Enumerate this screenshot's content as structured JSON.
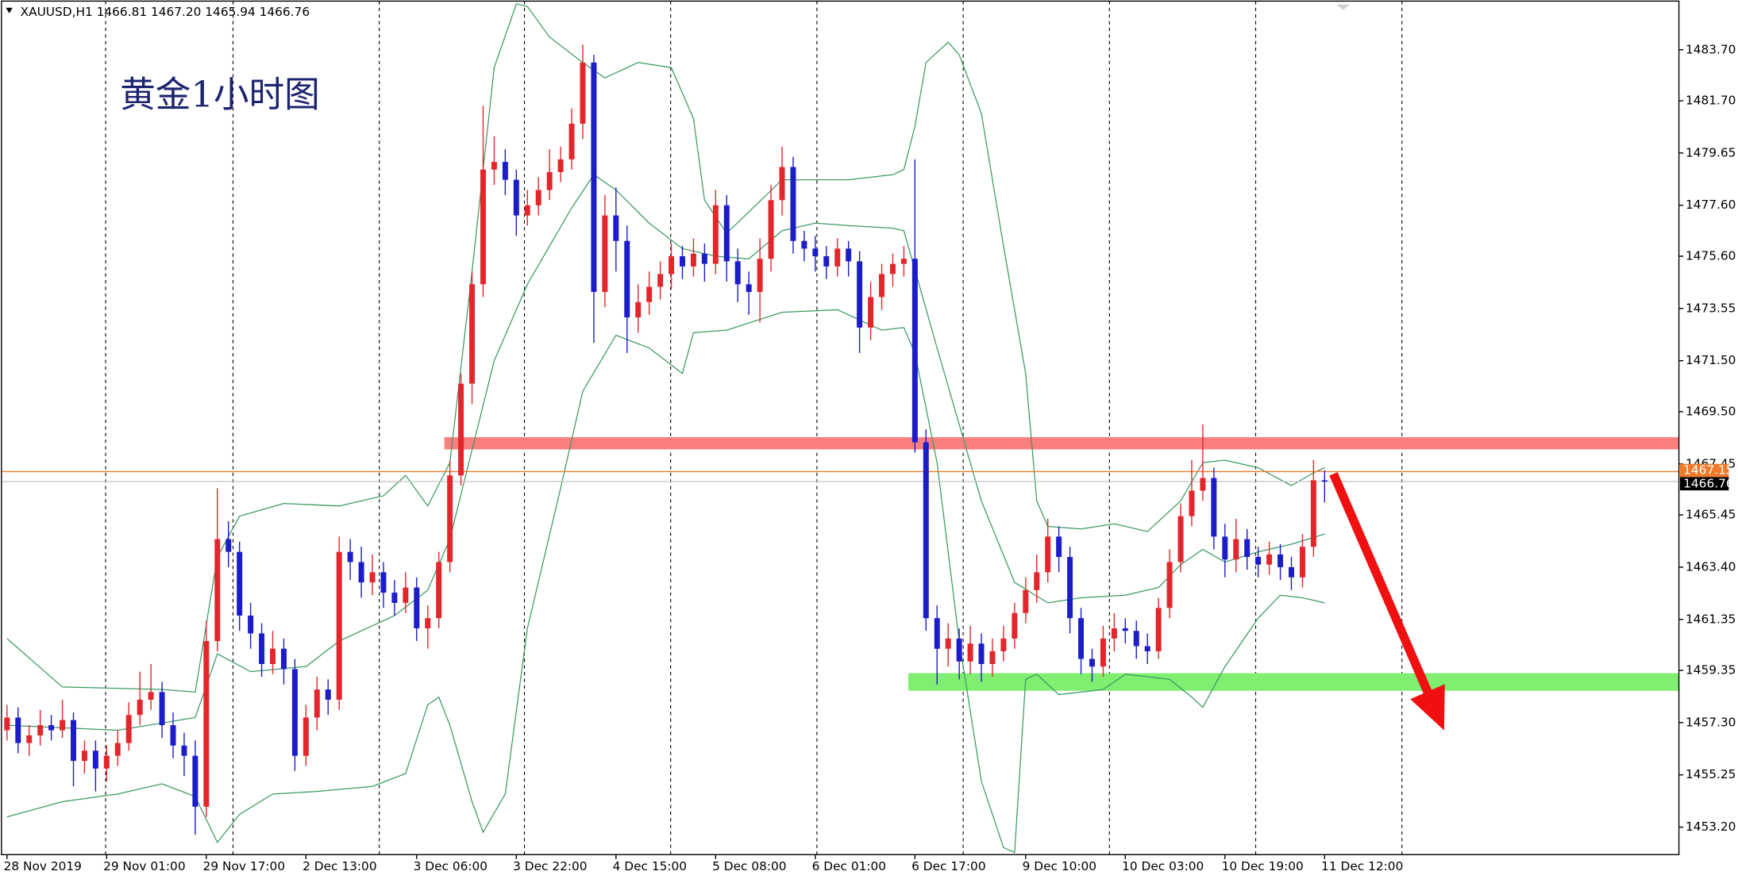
{
  "chart_data": {
    "type": "candlestick",
    "header": "XAUUSD,H1  1466.81 1467.20 1465.94 1466.76",
    "title": "黄金1小时图",
    "up_color": "#e3262b",
    "down_color": "#1c1cc8",
    "categories": [
      "28 Nov 2019",
      null,
      null,
      null,
      null,
      null,
      null,
      null,
      null,
      "29 Nov 01:00",
      null,
      null,
      null,
      null,
      null,
      null,
      null,
      null,
      "29 Nov 17:00",
      null,
      null,
      null,
      null,
      null,
      null,
      null,
      null,
      "2 Dec 13:00",
      null,
      null,
      null,
      null,
      null,
      null,
      null,
      null,
      null,
      "3 Dec 06:00",
      null,
      null,
      null,
      null,
      null,
      null,
      null,
      null,
      "3 Dec 22:00",
      null,
      null,
      null,
      null,
      null,
      null,
      null,
      null,
      "4 Dec 15:00",
      null,
      null,
      null,
      null,
      null,
      null,
      null,
      null,
      "5 Dec 08:00",
      null,
      null,
      null,
      null,
      null,
      null,
      null,
      null,
      "6 Dec 01:00",
      null,
      null,
      null,
      null,
      null,
      null,
      null,
      null,
      "6 Dec 17:00",
      null,
      null,
      null,
      null,
      null,
      null,
      null,
      null,
      null,
      "9 Dec 10:00",
      null,
      null,
      null,
      null,
      null,
      null,
      null,
      null,
      "10 Dec 03:00",
      null,
      null,
      null,
      null,
      null,
      null,
      null,
      null,
      "10 Dec 19:00",
      null,
      null,
      null,
      null,
      null,
      null,
      null,
      null,
      "11 Dec 12:00"
    ],
    "open": [
      1457.0,
      1457.5,
      1456.5,
      1456.8,
      1457.2,
      1457.0,
      1457.4,
      1455.8,
      1456.2,
      1455.5,
      1456.0,
      1456.5,
      1457.6,
      1458.2,
      1458.5,
      1457.2,
      1456.4,
      1456.0,
      1454.0,
      1460.5,
      1464.5,
      1464.0,
      1461.5,
      1460.8,
      1459.6,
      1460.2,
      1459.4,
      1456.0,
      1457.5,
      1458.6,
      1458.2,
      1464.0,
      1463.6,
      1462.8,
      1463.2,
      1462.4,
      1462.0,
      1462.6,
      1461.0,
      1461.4,
      1463.6,
      1467.0,
      1470.6,
      1474.5,
      1479.0,
      1479.3,
      1478.6,
      1477.2,
      1477.6,
      1478.2,
      1478.9,
      1479.4,
      1480.8,
      1483.2,
      1474.2,
      1477.2,
      1476.2,
      1473.2,
      1473.8,
      1474.4,
      1474.9,
      1475.6,
      1475.2,
      1475.7,
      1475.3,
      1477.6,
      1475.4,
      1474.5,
      1474.2,
      1475.5,
      1477.8,
      1479.1,
      1476.2,
      1475.9,
      1475.6,
      1475.2,
      1475.9,
      1475.4,
      1472.8,
      1474.0,
      1474.9,
      1475.3,
      1475.5,
      1468.3,
      1461.4,
      1460.2,
      1460.6,
      1459.7,
      1460.4,
      1459.6,
      1460.1,
      1460.6,
      1461.6,
      1462.5,
      1463.2,
      1464.6,
      1463.8,
      1461.4,
      1459.8,
      1459.5,
      1460.6,
      1461.0,
      1460.9,
      1460.3,
      1460.1,
      1461.8,
      1463.6,
      1465.4,
      1466.4,
      1466.9,
      1464.6,
      1463.7,
      1464.5,
      1463.8,
      1463.5,
      1463.9,
      1463.4,
      1463.0,
      1464.2,
      1466.81
    ],
    "high": [
      1458.0,
      1457.9,
      1457.2,
      1457.8,
      1457.6,
      1458.2,
      1457.7,
      1456.6,
      1456.6,
      1456.4,
      1457.0,
      1458.1,
      1459.3,
      1459.6,
      1458.9,
      1457.7,
      1456.9,
      1456.6,
      1461.3,
      1466.5,
      1465.2,
      1464.4,
      1462.0,
      1461.2,
      1460.9,
      1460.6,
      1459.8,
      1458.0,
      1459.1,
      1459.0,
      1464.6,
      1464.5,
      1464.2,
      1463.9,
      1463.6,
      1462.9,
      1463.2,
      1463.0,
      1461.9,
      1464.0,
      1467.6,
      1471.0,
      1475.0,
      1481.5,
      1480.3,
      1479.8,
      1479.0,
      1478.2,
      1478.7,
      1479.8,
      1479.9,
      1481.4,
      1483.9,
      1483.5,
      1478.0,
      1478.3,
      1476.8,
      1474.5,
      1475.0,
      1475.4,
      1476.1,
      1476.0,
      1476.3,
      1476.1,
      1478.2,
      1478.0,
      1475.9,
      1475.0,
      1476.3,
      1478.4,
      1479.9,
      1479.5,
      1476.6,
      1476.4,
      1476.0,
      1476.3,
      1476.2,
      1475.8,
      1474.6,
      1475.3,
      1475.7,
      1476.0,
      1479.4,
      1468.8,
      1461.9,
      1461.2,
      1461.0,
      1461.1,
      1460.8,
      1460.6,
      1461.1,
      1462.0,
      1463.0,
      1463.9,
      1465.3,
      1465.0,
      1464.2,
      1461.8,
      1460.2,
      1461.1,
      1461.6,
      1461.4,
      1461.3,
      1460.8,
      1462.2,
      1464.1,
      1465.9,
      1467.6,
      1469.0,
      1467.3,
      1465.1,
      1465.3,
      1464.9,
      1464.2,
      1464.4,
      1464.3,
      1463.8,
      1464.7,
      1467.6,
      1467.2
    ],
    "low": [
      1456.6,
      1456.1,
      1456.0,
      1456.4,
      1456.6,
      1456.7,
      1454.8,
      1455.3,
      1454.6,
      1455.0,
      1455.6,
      1456.2,
      1457.2,
      1457.8,
      1456.7,
      1455.9,
      1455.2,
      1452.9,
      1453.6,
      1460.1,
      1463.4,
      1460.9,
      1460.2,
      1459.1,
      1459.2,
      1458.8,
      1455.4,
      1455.6,
      1457.0,
      1457.6,
      1457.8,
      1462.9,
      1462.2,
      1462.3,
      1461.8,
      1461.5,
      1461.6,
      1460.5,
      1460.2,
      1461.0,
      1463.2,
      1466.6,
      1469.8,
      1474.0,
      1478.4,
      1478.0,
      1476.4,
      1476.8,
      1477.2,
      1477.8,
      1478.5,
      1479.0,
      1480.2,
      1472.2,
      1473.6,
      1475.0,
      1471.8,
      1472.6,
      1473.3,
      1473.9,
      1474.3,
      1474.7,
      1474.8,
      1474.6,
      1474.9,
      1474.6,
      1473.8,
      1473.3,
      1473.0,
      1475.0,
      1477.2,
      1475.7,
      1475.4,
      1475.0,
      1474.7,
      1474.8,
      1474.8,
      1471.8,
      1472.3,
      1473.5,
      1474.4,
      1474.8,
      1467.9,
      1460.9,
      1458.8,
      1459.5,
      1459.0,
      1459.2,
      1458.9,
      1459.1,
      1459.7,
      1460.2,
      1461.2,
      1462.0,
      1462.8,
      1463.2,
      1460.8,
      1459.2,
      1458.9,
      1459.1,
      1460.1,
      1460.4,
      1459.8,
      1459.6,
      1459.8,
      1461.4,
      1463.2,
      1465.0,
      1466.0,
      1464.1,
      1463.0,
      1463.2,
      1463.3,
      1463.0,
      1463.1,
      1462.9,
      1462.5,
      1462.6,
      1463.8,
      1465.94
    ],
    "close": [
      1457.5,
      1456.5,
      1456.8,
      1457.2,
      1457.0,
      1457.4,
      1455.8,
      1456.2,
      1455.5,
      1456.0,
      1456.5,
      1457.6,
      1458.2,
      1458.5,
      1457.2,
      1456.4,
      1456.0,
      1454.0,
      1460.5,
      1464.5,
      1464.0,
      1461.5,
      1460.8,
      1459.6,
      1460.2,
      1459.4,
      1456.0,
      1457.5,
      1458.6,
      1458.2,
      1464.0,
      1463.6,
      1462.8,
      1463.2,
      1462.4,
      1462.0,
      1462.6,
      1461.0,
      1461.4,
      1463.6,
      1467.0,
      1470.6,
      1474.5,
      1479.0,
      1479.3,
      1478.6,
      1477.2,
      1477.6,
      1478.2,
      1478.9,
      1479.4,
      1480.8,
      1483.2,
      1474.2,
      1477.2,
      1476.2,
      1473.2,
      1473.8,
      1474.4,
      1474.9,
      1475.6,
      1475.2,
      1475.7,
      1475.3,
      1477.6,
      1475.4,
      1474.5,
      1474.2,
      1475.5,
      1477.8,
      1479.1,
      1476.2,
      1475.9,
      1475.6,
      1475.2,
      1475.9,
      1475.4,
      1472.8,
      1474.0,
      1474.9,
      1475.3,
      1475.5,
      1468.3,
      1461.4,
      1460.2,
      1460.6,
      1459.7,
      1460.4,
      1459.6,
      1460.1,
      1460.6,
      1461.6,
      1462.5,
      1463.2,
      1464.6,
      1463.8,
      1461.4,
      1459.8,
      1459.5,
      1460.6,
      1461.0,
      1460.9,
      1460.3,
      1460.1,
      1461.8,
      1463.6,
      1465.4,
      1466.4,
      1466.9,
      1464.6,
      1463.7,
      1464.5,
      1463.8,
      1463.5,
      1463.9,
      1463.4,
      1463.0,
      1464.2,
      1466.81,
      1466.76
    ],
    "xlim": [
      -0.5,
      151
    ],
    "ylim": [
      1452.12,
      1485.61
    ],
    "yticks": [
      {
        "value": 1483.7,
        "label": "1483.70"
      },
      {
        "value": 1481.7,
        "label": "1481.70"
      },
      1479.65,
      {
        "value": 1477.6,
        "label": "1477.60"
      },
      {
        "value": 1475.6,
        "label": "1475.60"
      },
      1473.55,
      {
        "value": 1471.5,
        "label": "1471.50"
      },
      {
        "value": 1469.5,
        "label": "1469.50"
      },
      1467.45,
      1465.45,
      {
        "value": 1463.4,
        "label": "1463.40"
      },
      1461.35,
      1459.35,
      {
        "value": 1457.3,
        "label": "1457.30"
      },
      1455.25,
      {
        "value": 1453.2,
        "label": "1453.20"
      }
    ],
    "bands": [
      {
        "color": "#3c9a63",
        "x": [
          0,
          5,
          14,
          17,
          19,
          21,
          25,
          30,
          34,
          36,
          38,
          40,
          42,
          44,
          46,
          47,
          49,
          52,
          54,
          57,
          60,
          62,
          63,
          65,
          70,
          76,
          80,
          81,
          82,
          83,
          85,
          86,
          88,
          90,
          92,
          93,
          94,
          97,
          100,
          103,
          106,
          108,
          110,
          113,
          116,
          118,
          119
        ],
        "values": [
          1460.6,
          1458.7,
          1458.6,
          1458.5,
          1463.8,
          1465.4,
          1465.9,
          1465.8,
          1466.2,
          1467.0,
          1465.8,
          1467.5,
          1475,
          1483,
          1485.5,
          1485.4,
          1484.2,
          1483.2,
          1482.6,
          1483.2,
          1483.0,
          1481.0,
          1477.8,
          1476.5,
          1478.6,
          1478.6,
          1478.8,
          1479.0,
          1480.7,
          1483.2,
          1484.0,
          1483.5,
          1481.2,
          1476,
          1471,
          1466,
          1465.0,
          1464.9,
          1465.1,
          1464.8,
          1466.0,
          1467.5,
          1467.6,
          1467.3,
          1466.6,
          1467.1,
          1467.3
        ]
      },
      {
        "color": "#3c9a63",
        "x": [
          0,
          10,
          17,
          19,
          22,
          27,
          30,
          35,
          38,
          40,
          42,
          44,
          47,
          51,
          53,
          55,
          58,
          61,
          64,
          67,
          70,
          73,
          76,
          80,
          81,
          84,
          88,
          91,
          94,
          97,
          101,
          104,
          106,
          108,
          110,
          113,
          116,
          119
        ],
        "values": [
          1457.2,
          1457.0,
          1457.5,
          1460.0,
          1459.3,
          1459.5,
          1460.5,
          1461.5,
          1462.5,
          1464.5,
          1468,
          1471.5,
          1474.5,
          1477.5,
          1478.8,
          1478.2,
          1476.9,
          1475.9,
          1475.6,
          1475.5,
          1476.6,
          1476.9,
          1476.8,
          1476.7,
          1476.6,
          1472,
          1466,
          1462.8,
          1462.0,
          1462.2,
          1462.3,
          1462.6,
          1463.5,
          1464.1,
          1463.6,
          1464.0,
          1464.3,
          1464.7
        ]
      },
      {
        "color": "#3c9a63",
        "x": [
          0,
          5,
          10,
          14,
          17,
          19,
          21,
          24,
          28,
          33,
          36,
          38,
          39,
          40,
          42,
          43,
          45,
          47,
          50,
          52,
          55,
          58,
          61,
          62,
          65,
          70,
          75,
          79,
          81,
          82,
          84,
          86,
          88,
          90,
          91,
          92,
          93,
          95,
          99,
          101,
          105,
          107,
          108,
          110,
          113,
          115,
          117,
          119
        ],
        "values": [
          1453.6,
          1454.2,
          1454.5,
          1454.9,
          1454.4,
          1452.6,
          1453.7,
          1454.5,
          1454.6,
          1454.8,
          1455.3,
          1458.0,
          1458.3,
          1457.2,
          1454.2,
          1453.0,
          1454.5,
          1461,
          1466.5,
          1470.3,
          1472.5,
          1472.0,
          1471.0,
          1472.6,
          1472.7,
          1473.4,
          1473.5,
          1472.7,
          1472.8,
          1471.8,
          1467.5,
          1460.5,
          1455.0,
          1452.4,
          1452.2,
          1459.0,
          1459.2,
          1458.4,
          1458.6,
          1459.2,
          1459.0,
          1458.3,
          1457.9,
          1459.5,
          1461.4,
          1462.3,
          1462.2,
          1462.0
        ]
      }
    ],
    "price_lines": [
      {
        "value": 1467.15,
        "color": "#f07a2a"
      },
      {
        "value": 1466.76,
        "color": "#c8c8c8"
      }
    ],
    "zones": [
      {
        "color": "#fa7f7f",
        "x": [
          39.5,
          151
        ],
        "y": [
          1468.02,
          1468.5
        ]
      },
      {
        "color": "#80ee70",
        "x": [
          81.4,
          151
        ],
        "y": [
          1458.55,
          1459.24
        ]
      }
    ],
    "arrow": {
      "color": "#f01010",
      "x": [
        119.8,
        129.8
      ],
      "y": [
        1467.06,
        1457.0
      ]
    }
  }
}
